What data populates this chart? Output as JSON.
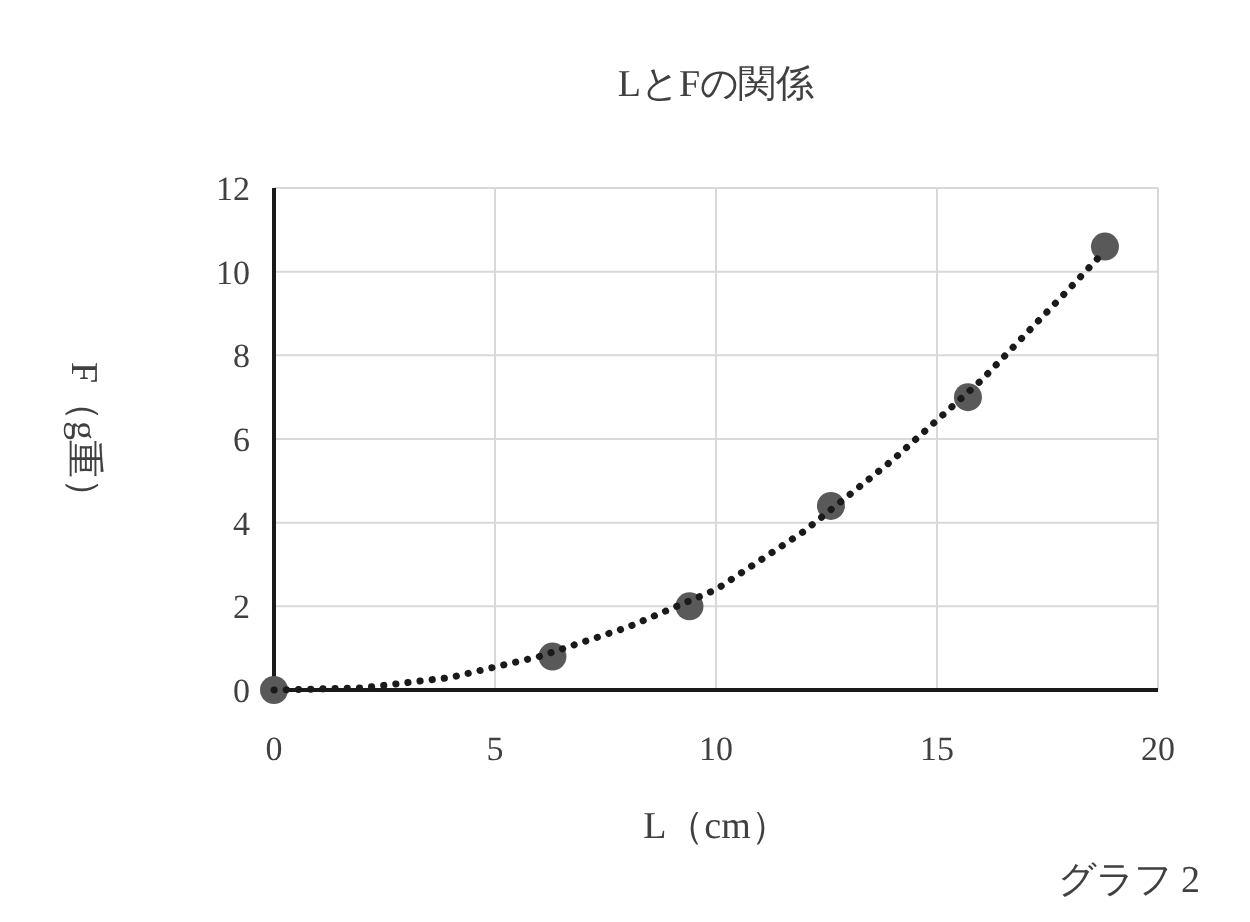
{
  "chart_data": {
    "type": "scatter",
    "title": "LとFの関係",
    "xlabel": "L（cm）",
    "ylabel": "F（g重）",
    "annotations": [
      "グラフ 2"
    ],
    "x": [
      0,
      6.3,
      9.4,
      12.6,
      15.7,
      18.8
    ],
    "series": [
      {
        "color": "#595959",
        "marker": "circle",
        "values": [
          0,
          0.8,
          2.0,
          4.4,
          7.0,
          10.6
        ]
      },
      {
        "type": "line",
        "color": "#1a1a1a",
        "line_style": "dotted",
        "marker": "none",
        "x": [
          0,
          2,
          4,
          6,
          8,
          10,
          12,
          14,
          16,
          18,
          18.8
        ],
        "values": [
          0,
          0.05,
          0.3,
          0.8,
          1.5,
          2.4,
          3.8,
          5.5,
          7.4,
          9.6,
          10.5
        ]
      }
    ],
    "xlim": [
      0,
      20
    ],
    "xticks": [
      0,
      5,
      10,
      15,
      20
    ],
    "ylim": [
      0,
      12
    ],
    "yticks": [
      0,
      2,
      4,
      6,
      8,
      10,
      12
    ],
    "grid": true
  }
}
